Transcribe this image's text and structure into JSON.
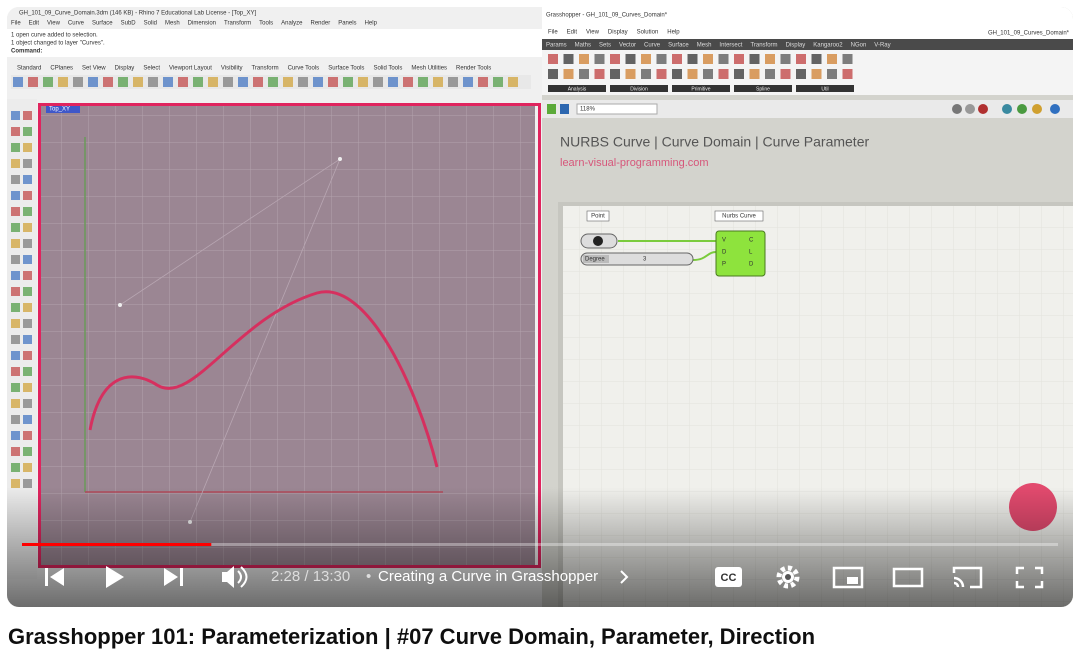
{
  "video": {
    "title": "Grasshopper 101: Parameterization | #07 Curve Domain, Parameter, Direction",
    "time": "2:28 / 13:30",
    "chapter": "Creating a Curve in Grasshopper",
    "cc": "CC"
  },
  "rhino": {
    "title": "GH_101_09_Curve_Domain.3dm (146 KB) - Rhino 7 Educational Lab License - [Top_XY]",
    "menu": [
      "File",
      "Edit",
      "View",
      "Curve",
      "Surface",
      "SubD",
      "Solid",
      "Mesh",
      "Dimension",
      "Transform",
      "Tools",
      "Analyze",
      "Render",
      "Panels",
      "Help"
    ],
    "messages": [
      "1 open curve added to selection.",
      "1 object changed to layer \"Curves\"."
    ],
    "command": "Command:",
    "toolbar_tabs": [
      "Standard",
      "CPlanes",
      "Set View",
      "Display",
      "Select",
      "Viewport Layout",
      "Visibility",
      "Transform",
      "Curve Tools",
      "Surface Tools",
      "Solid Tools",
      "Mesh Utilities",
      "Render Tools"
    ],
    "viewport": "Top_XY"
  },
  "grasshopper": {
    "window_title": "Grasshopper - GH_101_09_Curves_Domain*",
    "file_name": "GH_101_09_Curves_Domain*",
    "menu": [
      "File",
      "Edit",
      "View",
      "Display",
      "Solution",
      "Help"
    ],
    "tabs": [
      "Params",
      "Maths",
      "Sets",
      "Vector",
      "Curve",
      "Surface",
      "Mesh",
      "Intersect",
      "Transform",
      "Display",
      "Kangaroo2",
      "NGon",
      "V-Ray"
    ],
    "ribbon_groups": [
      "Analysis",
      "Division",
      "Primitive",
      "Spline",
      "Util"
    ],
    "zoom": "118%",
    "heading": "NURBS Curve | Curve Domain | Curve Parameter",
    "website": "learn-visual-programming.com",
    "point_label": "Point",
    "nurbs": {
      "label": "Nurbs Curve",
      "inputs": [
        "V",
        "D",
        "P"
      ],
      "outputs": [
        "C",
        "L",
        "D"
      ]
    },
    "slider": {
      "label": "Degree",
      "value": 3
    }
  }
}
